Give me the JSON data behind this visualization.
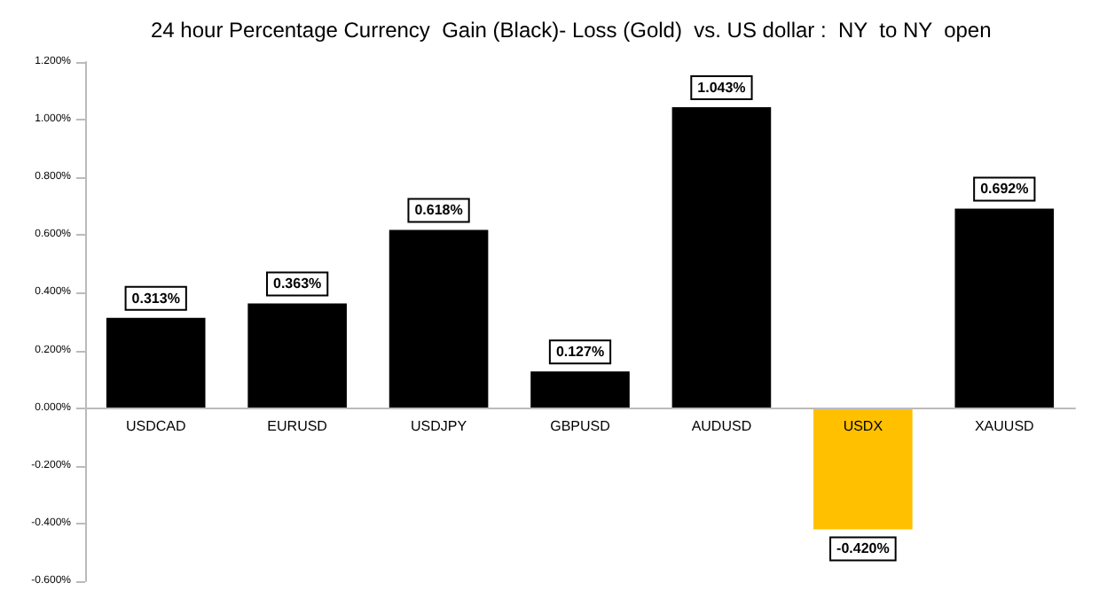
{
  "chart_data": {
    "type": "bar",
    "title": "24 hour Percentage Currency  Gain (Black)- Loss (Gold)  vs. US dollar :  NY  to NY  open",
    "categories": [
      "USDCAD",
      "EURUSD",
      "USDJPY",
      "GBPUSD",
      "AUDUSD",
      "USDX",
      "XAUUSD"
    ],
    "values": [
      0.313,
      0.363,
      0.618,
      0.127,
      1.043,
      -0.42,
      0.692
    ],
    "colors": [
      "#000000",
      "#000000",
      "#000000",
      "#000000",
      "#000000",
      "#ffc000",
      "#000000"
    ],
    "value_labels": [
      "0.313%",
      "0.363%",
      "0.618%",
      "0.127%",
      "1.043%",
      "-0.420%",
      "0.692%"
    ],
    "ylim": [
      -0.6,
      1.2
    ],
    "yticks": [
      {
        "value": -0.6,
        "label": "-0.600%"
      },
      {
        "value": -0.4,
        "label": "-0.400%"
      },
      {
        "value": -0.2,
        "label": "-0.200%"
      },
      {
        "value": 0,
        "label": "0.000%"
      },
      {
        "value": 0.2,
        "label": "0.200%"
      },
      {
        "value": 0.4,
        "label": "0.400%"
      },
      {
        "value": 0.6,
        "label": "0.600%"
      },
      {
        "value": 0.8,
        "label": "0.800%"
      },
      {
        "value": 1.0,
        "label": "1.000%"
      },
      {
        "value": 1.2,
        "label": "1.200%"
      }
    ],
    "grid": false
  }
}
